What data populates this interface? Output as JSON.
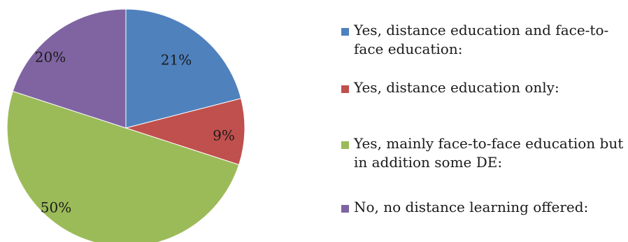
{
  "chart_data": {
    "type": "pie",
    "categories": [
      "Yes, distance education and face-to-face education:",
      "Yes, distance education only:",
      "Yes, mainly face-to-face education but in addition some DE:",
      "No, no distance learning offered:"
    ],
    "values": [
      21,
      9,
      50,
      20
    ],
    "data_labels": [
      "21%",
      "9%",
      "50%",
      "20%"
    ],
    "colors": [
      "#4f81bd",
      "#c0504d",
      "#9bbb59",
      "#8064a2"
    ],
    "legend_position": "right",
    "title": ""
  }
}
